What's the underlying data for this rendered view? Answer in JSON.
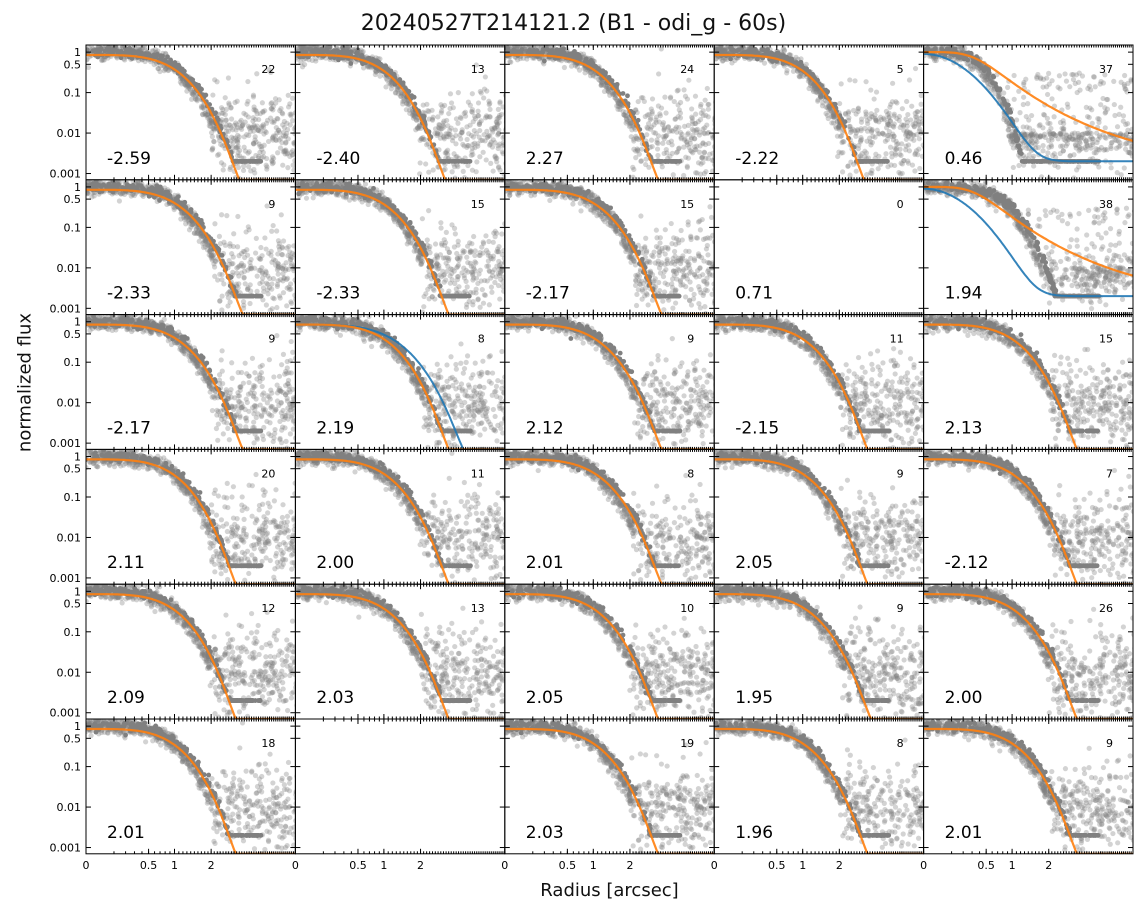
{
  "title": "20240527T214121.2 (B1 - odi_g - 60s)",
  "xlabel": "Radius [arcsec]",
  "ylabel": "normalized flux",
  "colors": {
    "points": "#808080",
    "fit": "#ff7f0e",
    "fit_alt": "#1f77b4"
  },
  "chart_data": {
    "type": "scatter",
    "grid": "6 rows x 5 columns",
    "xscale": "square-root",
    "yscale": "log",
    "xlim": [
      0,
      5.6
    ],
    "ylim": [
      0.0007,
      1.5
    ],
    "x_ticks": [
      "0",
      "0.5",
      "1",
      "2"
    ],
    "y_ticks": [
      "1",
      "0.5",
      "0.1",
      "0.01",
      "0.001"
    ],
    "panels": [
      {
        "value": "-2.59",
        "count": "22",
        "fwhm": 1.1
      },
      {
        "value": "-2.40",
        "count": "13",
        "fwhm": 1.05
      },
      {
        "value": "2.27",
        "count": "24",
        "fwhm": 1.1
      },
      {
        "value": "-2.22",
        "count": "5",
        "fwhm": 1.05
      },
      {
        "value": "0.46",
        "count": "37",
        "fwhm": 0.5,
        "anomaly": true
      },
      {
        "value": "-2.33",
        "count": "9",
        "fwhm": 1.15
      },
      {
        "value": "-2.33",
        "count": "15",
        "fwhm": 1.1
      },
      {
        "value": "-2.17",
        "count": "15",
        "fwhm": 1.15
      },
      {
        "value": "0.71",
        "count": "0",
        "empty": true
      },
      {
        "value": "1.94",
        "count": "38",
        "fwhm": 0.9,
        "anomaly": true
      },
      {
        "value": "-2.17",
        "count": "9",
        "fwhm": 1.15
      },
      {
        "value": "2.19",
        "count": "8",
        "fwhm": 1.1,
        "blue": true
      },
      {
        "value": "2.12",
        "count": "9",
        "fwhm": 1.15
      },
      {
        "value": "-2.15",
        "count": "11",
        "fwhm": 1.1
      },
      {
        "value": "2.13",
        "count": "15",
        "fwhm": 1.1
      },
      {
        "value": "2.11",
        "count": "20",
        "fwhm": 1.05
      },
      {
        "value": "2.00",
        "count": "11",
        "fwhm": 1.1
      },
      {
        "value": "2.01",
        "count": "8",
        "fwhm": 1.15
      },
      {
        "value": "2.05",
        "count": "9",
        "fwhm": 1.1
      },
      {
        "value": "-2.12",
        "count": "7",
        "fwhm": 1.1
      },
      {
        "value": "2.09",
        "count": "12",
        "fwhm": 1.05
      },
      {
        "value": "2.03",
        "count": "13",
        "fwhm": 1.1
      },
      {
        "value": "2.05",
        "count": "10",
        "fwhm": 1.1
      },
      {
        "value": "1.95",
        "count": "9",
        "fwhm": 1.15
      },
      {
        "value": "2.00",
        "count": "26",
        "fwhm": 1.1
      },
      {
        "value": "2.01",
        "count": "18",
        "fwhm": 1.05
      },
      {
        "value": "",
        "count": "",
        "blank": true
      },
      {
        "value": "2.03",
        "count": "19",
        "fwhm": 1.1
      },
      {
        "value": "1.96",
        "count": "8",
        "fwhm": 1.1
      },
      {
        "value": "2.01",
        "count": "9",
        "fwhm": 1.1
      }
    ]
  }
}
